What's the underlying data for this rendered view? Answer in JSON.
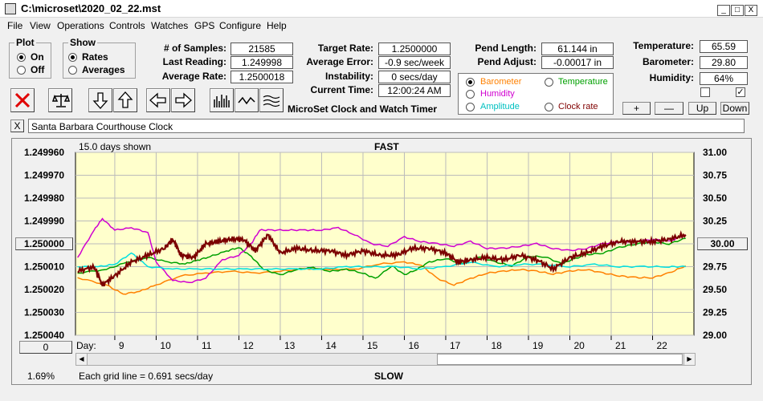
{
  "window": {
    "title": "C:\\microset\\2020_02_22.mst",
    "min": "_",
    "max": "□",
    "close": "X"
  },
  "menu": [
    "File",
    "View",
    "Operations",
    "Controls",
    "Watches",
    "GPS",
    "Configure",
    "Help"
  ],
  "plot_group": {
    "legend": "Plot",
    "options": [
      {
        "label": "On",
        "selected": true
      },
      {
        "label": "Off",
        "selected": false
      }
    ]
  },
  "show_group": {
    "legend": "Show",
    "options": [
      {
        "label": "Rates",
        "selected": true
      },
      {
        "label": "Averages",
        "selected": false
      }
    ]
  },
  "stats_left": [
    {
      "label": "# of Samples:",
      "value": "21585"
    },
    {
      "label": "Last Reading:",
      "value": "1.249998"
    },
    {
      "label": "Average Rate:",
      "value": "1.2500018"
    }
  ],
  "stats_mid": [
    {
      "label": "Target Rate:",
      "value": "1.2500000"
    },
    {
      "label": "Average Error:",
      "value": "-0.9 sec/week"
    },
    {
      "label": "Instability:",
      "value": "0 secs/day"
    },
    {
      "label": "Current Time:",
      "value": "12:00:24 AM"
    }
  ],
  "pend": [
    {
      "label": "Pend Length:",
      "value": "61.144 in"
    },
    {
      "label": "Pend Adjust:",
      "value": "-0.00017 in"
    }
  ],
  "env": [
    {
      "label": "Temperature:",
      "value": "65.59"
    },
    {
      "label": "Barometer:",
      "value": "29.80"
    },
    {
      "label": "Humidity:",
      "value": "64%"
    }
  ],
  "app_title": "MicroSet Clock and Watch Timer",
  "sensor_options": [
    {
      "label": "Barometer",
      "color": "#ff8000",
      "selected": true
    },
    {
      "label": "Temperature",
      "color": "#00a000",
      "selected": false
    },
    {
      "label": "Humidity",
      "color": "#d000d0",
      "selected": false
    },
    {
      "label": "Clock rate",
      "color": "#800000",
      "selected": false
    },
    {
      "label": "Amplitude",
      "color": "#00c0c0",
      "selected": false
    }
  ],
  "right_buttons": [
    "+",
    "—",
    "Up",
    "Down"
  ],
  "checks": [
    false,
    true
  ],
  "description": "Santa Barbara Courthouse Clock",
  "desc_close": "X",
  "plot": {
    "days_shown": "15.0 days shown",
    "top_label": "FAST",
    "bottom_label": "SLOW",
    "grid_note": "Each grid line = 0.691 secs/day",
    "percent": "1.69%",
    "day_label": "Day:",
    "left_button": "1.250000",
    "right_button": "30.00",
    "zero_button": "0",
    "bg": "#ffffcc"
  },
  "chart_data": {
    "type": "line",
    "x_days": [
      9,
      10,
      11,
      12,
      13,
      14,
      15,
      16,
      17,
      18,
      19,
      20,
      21,
      22
    ],
    "xlim": [
      8.05,
      23.0
    ],
    "left_axis": {
      "ticks": [
        "1.249960",
        "1.249970",
        "1.249980",
        "1.249990",
        "1.250000",
        "1.250010",
        "1.250020",
        "1.250030",
        "1.250040"
      ],
      "ylim": [
        1.24996,
        1.25004
      ],
      "inverted": true
    },
    "right_axis": {
      "ticks": [
        "31.00",
        "30.75",
        "30.50",
        "30.25",
        "30.00",
        "29.75",
        "29.50",
        "29.25",
        "29.00"
      ],
      "ylim": [
        29.0,
        31.0
      ]
    },
    "series": [
      {
        "color": "#ff8000",
        "axis": "right",
        "points": [
          [
            8.1,
            29.63
          ],
          [
            8.8,
            29.55
          ],
          [
            9.2,
            29.45
          ],
          [
            9.6,
            29.48
          ],
          [
            10.0,
            29.55
          ],
          [
            10.6,
            29.65
          ],
          [
            11.2,
            29.68
          ],
          [
            11.8,
            29.7
          ],
          [
            12.4,
            29.68
          ],
          [
            13.0,
            29.7
          ],
          [
            13.6,
            29.73
          ],
          [
            14.2,
            29.72
          ],
          [
            14.8,
            29.72
          ],
          [
            15.4,
            29.78
          ],
          [
            16.0,
            29.8
          ],
          [
            16.4,
            29.77
          ],
          [
            16.8,
            29.62
          ],
          [
            17.2,
            29.55
          ],
          [
            17.6,
            29.62
          ],
          [
            18.0,
            29.68
          ],
          [
            18.4,
            29.7
          ],
          [
            18.8,
            29.72
          ],
          [
            19.2,
            29.7
          ],
          [
            19.6,
            29.67
          ],
          [
            20.0,
            29.7
          ],
          [
            20.4,
            29.72
          ],
          [
            20.8,
            29.68
          ],
          [
            21.2,
            29.65
          ],
          [
            21.6,
            29.63
          ],
          [
            22.0,
            29.63
          ],
          [
            22.4,
            29.68
          ],
          [
            22.8,
            29.76
          ]
        ]
      },
      {
        "color": "#00a000",
        "axis": "right",
        "points": [
          [
            8.1,
            29.68
          ],
          [
            8.8,
            29.72
          ],
          [
            9.3,
            29.8
          ],
          [
            9.8,
            29.85
          ],
          [
            10.3,
            29.8
          ],
          [
            10.7,
            29.78
          ],
          [
            11.0,
            29.82
          ],
          [
            11.3,
            29.86
          ],
          [
            11.7,
            29.92
          ],
          [
            12.0,
            29.96
          ],
          [
            12.3,
            29.86
          ],
          [
            12.6,
            29.72
          ],
          [
            13.0,
            29.66
          ],
          [
            13.4,
            29.72
          ],
          [
            13.8,
            29.74
          ],
          [
            14.2,
            29.7
          ],
          [
            14.6,
            29.72
          ],
          [
            15.0,
            29.68
          ],
          [
            15.3,
            29.62
          ],
          [
            15.7,
            29.76
          ],
          [
            16.0,
            29.66
          ],
          [
            16.3,
            29.72
          ],
          [
            16.6,
            29.8
          ],
          [
            17.0,
            29.84
          ],
          [
            17.4,
            29.78
          ],
          [
            17.8,
            29.86
          ],
          [
            18.2,
            29.8
          ],
          [
            18.6,
            29.76
          ],
          [
            19.0,
            29.86
          ],
          [
            19.4,
            29.86
          ],
          [
            19.8,
            29.78
          ],
          [
            20.0,
            29.82
          ],
          [
            20.4,
            29.88
          ],
          [
            20.8,
            29.9
          ],
          [
            21.2,
            29.96
          ],
          [
            21.6,
            30.0
          ],
          [
            22.0,
            30.02
          ],
          [
            22.4,
            30.0
          ],
          [
            22.8,
            30.06
          ]
        ]
      },
      {
        "color": "#d000d0",
        "axis": "left",
        "points": [
          [
            8.1,
            1.250006
          ],
          [
            8.5,
            1.249994
          ],
          [
            8.7,
            1.249989
          ],
          [
            9.0,
            1.249994
          ],
          [
            9.4,
            1.249993
          ],
          [
            9.8,
            1.249995
          ],
          [
            10.0,
            1.250008
          ],
          [
            10.4,
            1.250016
          ],
          [
            10.8,
            1.250017
          ],
          [
            11.2,
            1.250015
          ],
          [
            11.6,
            1.250007
          ],
          [
            12.0,
            1.250005
          ],
          [
            12.3,
            1.25
          ],
          [
            12.5,
            1.249994
          ],
          [
            12.8,
            1.249994
          ],
          [
            13.2,
            1.249994
          ],
          [
            13.6,
            1.249994
          ],
          [
            14.0,
            1.249994
          ],
          [
            14.4,
            1.249993
          ],
          [
            14.8,
            1.249996
          ],
          [
            15.2,
            1.25
          ],
          [
            15.6,
            1.250001
          ],
          [
            16.0,
            1.249997
          ],
          [
            16.4,
            1.249999
          ],
          [
            16.8,
            1.25
          ],
          [
            17.2,
            1.250001
          ],
          [
            17.6,
            1.249999
          ],
          [
            18.0,
            1.250002
          ],
          [
            18.4,
            1.250002
          ],
          [
            18.8,
            1.250001
          ],
          [
            19.2,
            1.25
          ],
          [
            19.6,
            1.250002
          ],
          [
            20.0,
            1.250003
          ],
          [
            20.4,
            1.250002
          ],
          [
            20.8,
            1.25
          ],
          [
            21.2,
            1.249999
          ],
          [
            21.6,
            1.249999
          ],
          [
            22.0,
            1.249998
          ],
          [
            22.4,
            1.249999
          ],
          [
            22.8,
            1.249996
          ]
        ]
      },
      {
        "color": "#00e0e0",
        "axis": "left",
        "points": [
          [
            8.1,
            1.25001
          ],
          [
            8.6,
            1.25001
          ],
          [
            9.0,
            1.250009
          ],
          [
            9.4,
            1.250004
          ],
          [
            9.8,
            1.25001
          ],
          [
            10.4,
            1.250011
          ],
          [
            11.0,
            1.250011
          ],
          [
            11.6,
            1.250011
          ],
          [
            12.2,
            1.250011
          ],
          [
            12.8,
            1.250011
          ],
          [
            13.4,
            1.250011
          ],
          [
            14.0,
            1.250011
          ],
          [
            14.6,
            1.25001
          ],
          [
            15.2,
            1.25001
          ],
          [
            15.8,
            1.25001
          ],
          [
            16.4,
            1.250011
          ],
          [
            17.0,
            1.25001
          ],
          [
            17.6,
            1.250008
          ],
          [
            18.2,
            1.25001
          ],
          [
            18.8,
            1.250009
          ],
          [
            19.4,
            1.250009
          ],
          [
            20.0,
            1.25001
          ],
          [
            20.6,
            1.250009
          ],
          [
            21.2,
            1.25001
          ],
          [
            21.8,
            1.25001
          ],
          [
            22.4,
            1.25001
          ],
          [
            22.8,
            1.25001
          ]
        ]
      },
      {
        "color": "#7b0000",
        "axis": "left",
        "noisy": true,
        "points": [
          [
            8.1,
            1.250012
          ],
          [
            8.5,
            1.25001
          ],
          [
            8.7,
            1.250018
          ],
          [
            9.0,
            1.250014
          ],
          [
            9.4,
            1.250008
          ],
          [
            9.8,
            1.250005
          ],
          [
            10.2,
            1.250002
          ],
          [
            10.4,
            1.249998
          ],
          [
            10.6,
            1.250005
          ],
          [
            10.9,
            1.250006
          ],
          [
            11.2,
            1.25
          ],
          [
            11.5,
            1.249999
          ],
          [
            11.8,
            1.249998
          ],
          [
            12.1,
            1.249998
          ],
          [
            12.4,
            1.250003
          ],
          [
            12.7,
            1.249996
          ],
          [
            13.0,
            1.250004
          ],
          [
            13.4,
            1.250002
          ],
          [
            13.8,
            1.250003
          ],
          [
            14.2,
            1.250003
          ],
          [
            14.6,
            1.250005
          ],
          [
            15.0,
            1.250003
          ],
          [
            15.4,
            1.250005
          ],
          [
            15.8,
            1.250005
          ],
          [
            16.2,
            1.250002
          ],
          [
            16.6,
            1.250002
          ],
          [
            17.0,
            1.250004
          ],
          [
            17.3,
            1.250008
          ],
          [
            17.6,
            1.250007
          ],
          [
            18.0,
            1.250006
          ],
          [
            18.4,
            1.250007
          ],
          [
            18.8,
            1.250005
          ],
          [
            19.2,
            1.250007
          ],
          [
            19.6,
            1.250011
          ],
          [
            20.0,
            1.250006
          ],
          [
            20.4,
            1.250004
          ],
          [
            20.8,
            1.250001
          ],
          [
            21.2,
            1.249999
          ],
          [
            21.6,
            1.249999
          ],
          [
            22.0,
            1.249999
          ],
          [
            22.4,
            1.249998
          ],
          [
            22.8,
            1.249996
          ]
        ]
      }
    ]
  }
}
